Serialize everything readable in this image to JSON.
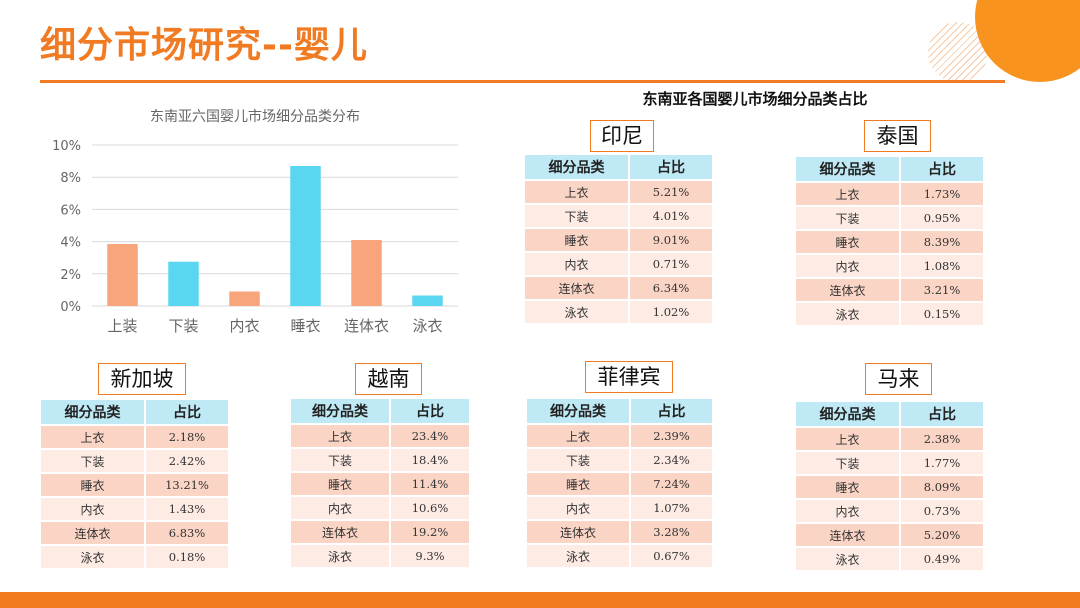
{
  "page": {
    "title": "细分市场研究--婴儿"
  },
  "chart_data": {
    "type": "bar",
    "title": "东南亚六国婴儿市场细分品类分布",
    "categories": [
      "上装",
      "下装",
      "内衣",
      "睡衣",
      "连体衣",
      "泳衣"
    ],
    "values": [
      3.85,
      2.75,
      0.9,
      8.7,
      4.1,
      0.65
    ],
    "bar_colors": [
      "#F8A57C",
      "#5AD5F2",
      "#F8A57C",
      "#5AD5F2",
      "#F8A57C",
      "#5AD5F2"
    ],
    "y_ticks": [
      "0%",
      "2%",
      "4%",
      "6%",
      "8%",
      "10%"
    ],
    "ylim": [
      0,
      10
    ],
    "grid": true
  },
  "tables_heading": "东南亚各国婴儿市场细分品类占比",
  "table_headers": {
    "category": "细分品类",
    "share": "占比"
  },
  "tables": [
    {
      "country": "印尼",
      "rows": [
        {
          "category": "上衣",
          "share": "5.21%"
        },
        {
          "category": "下装",
          "share": "4.01%"
        },
        {
          "category": "睡衣",
          "share": "9.01%"
        },
        {
          "category": "内衣",
          "share": "0.71%"
        },
        {
          "category": "连体衣",
          "share": "6.34%"
        },
        {
          "category": "泳衣",
          "share": "1.02%"
        }
      ]
    },
    {
      "country": "泰国",
      "rows": [
        {
          "category": "上衣",
          "share": "1.73%"
        },
        {
          "category": "下装",
          "share": "0.95%"
        },
        {
          "category": "睡衣",
          "share": "8.39%"
        },
        {
          "category": "内衣",
          "share": "1.08%"
        },
        {
          "category": "连体衣",
          "share": "3.21%"
        },
        {
          "category": "泳衣",
          "share": "0.15%"
        }
      ]
    },
    {
      "country": "新加坡",
      "rows": [
        {
          "category": "上衣",
          "share": "2.18%"
        },
        {
          "category": "下装",
          "share": "2.42%"
        },
        {
          "category": "睡衣",
          "share": "13.21%"
        },
        {
          "category": "内衣",
          "share": "1.43%"
        },
        {
          "category": "连体衣",
          "share": "6.83%"
        },
        {
          "category": "泳衣",
          "share": "0.18%"
        }
      ]
    },
    {
      "country": "越南",
      "rows": [
        {
          "category": "上衣",
          "share": "23.4%"
        },
        {
          "category": "下装",
          "share": "18.4%"
        },
        {
          "category": "睡衣",
          "share": "11.4%"
        },
        {
          "category": "内衣",
          "share": "10.6%"
        },
        {
          "category": "连体衣",
          "share": "19.2%"
        },
        {
          "category": "泳衣",
          "share": "9.3%"
        }
      ]
    },
    {
      "country": "菲律宾",
      "rows": [
        {
          "category": "上衣",
          "share": "2.39%"
        },
        {
          "category": "下装",
          "share": "2.34%"
        },
        {
          "category": "睡衣",
          "share": "7.24%"
        },
        {
          "category": "内衣",
          "share": "1.07%"
        },
        {
          "category": "连体衣",
          "share": "3.28%"
        },
        {
          "category": "泳衣",
          "share": "0.67%"
        }
      ]
    },
    {
      "country": "马来",
      "rows": [
        {
          "category": "上衣",
          "share": "2.38%"
        },
        {
          "category": "下装",
          "share": "1.77%"
        },
        {
          "category": "睡衣",
          "share": "8.09%"
        },
        {
          "category": "内衣",
          "share": "0.73%"
        },
        {
          "category": "连体衣",
          "share": "5.20%"
        },
        {
          "category": "泳衣",
          "share": "0.49%"
        }
      ]
    }
  ]
}
